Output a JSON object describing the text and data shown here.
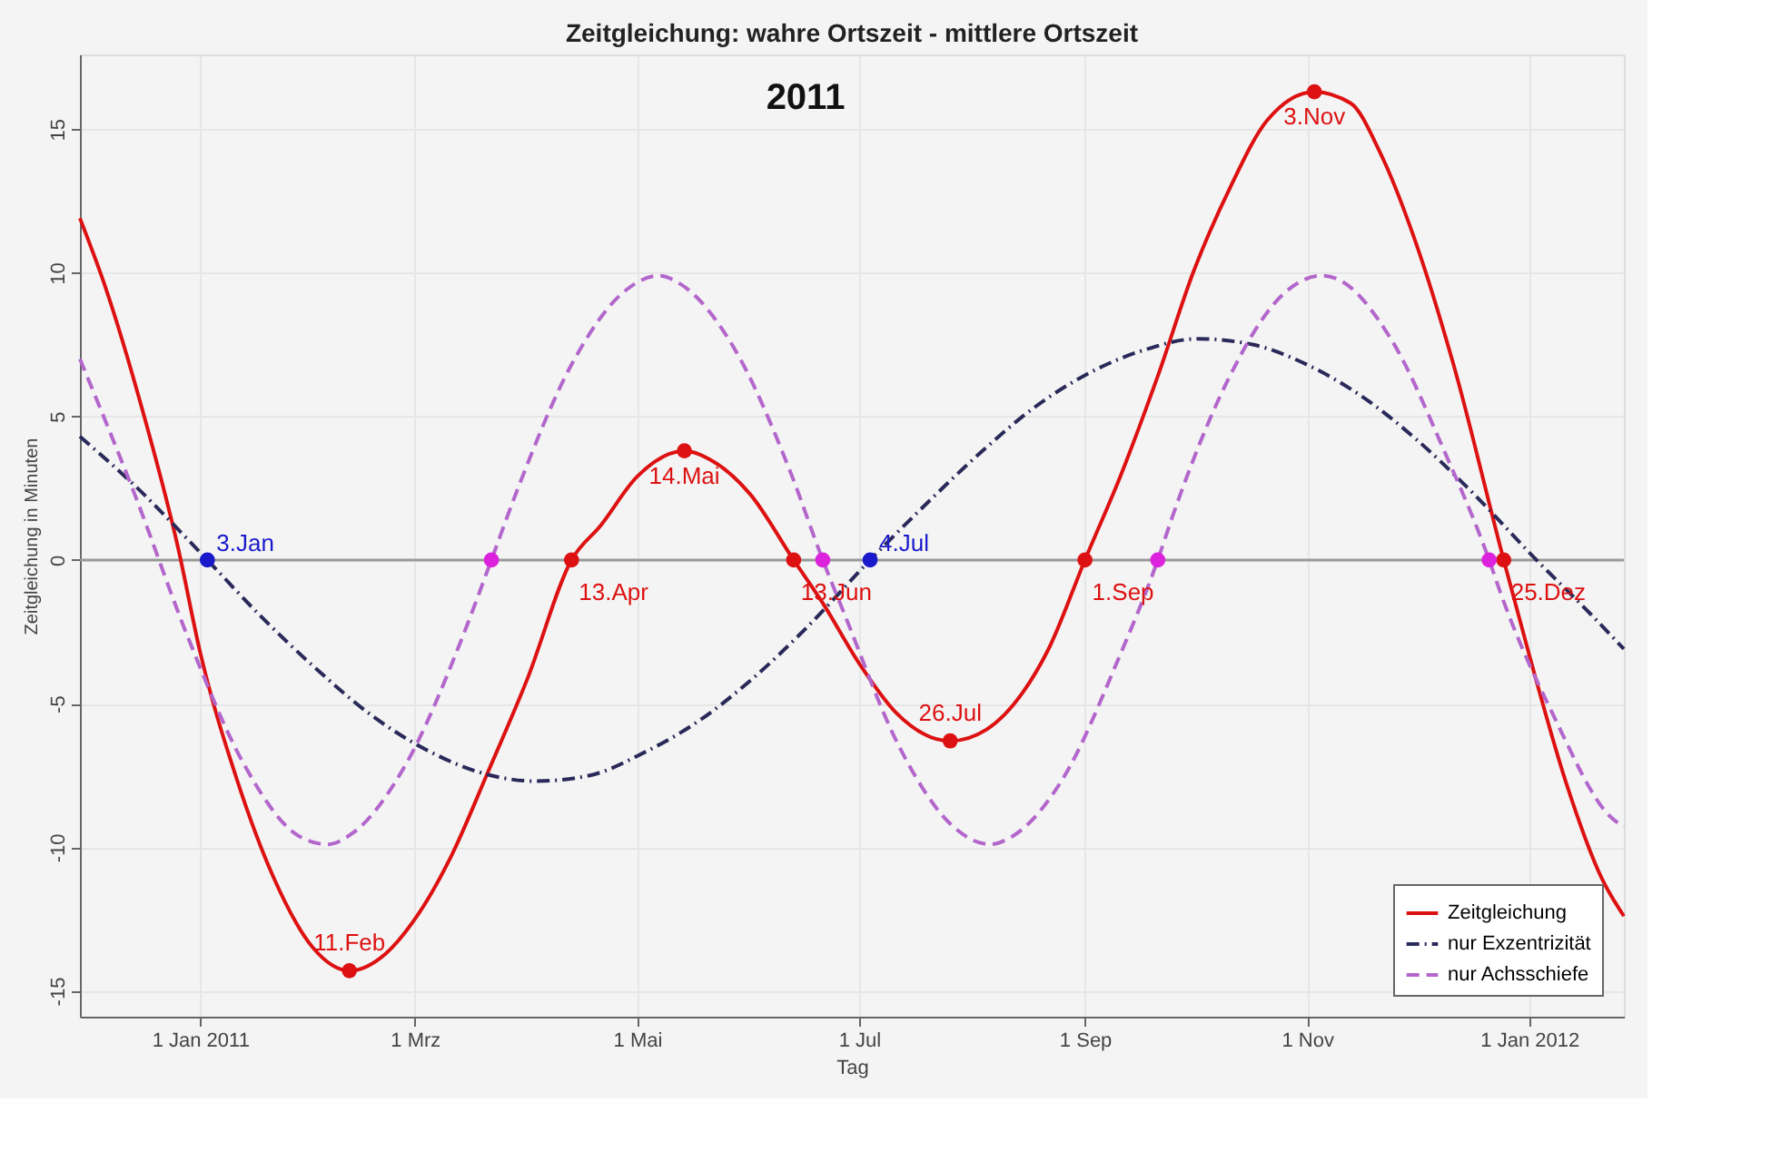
{
  "chart_data": {
    "type": "line",
    "title": "Zeitgleichung: wahre Ortszeit - mittlere Ortszeit",
    "xlabel": "Tag",
    "ylabel": "Zeitgleichung in Minuten",
    "xlim": [
      "2010-11-29",
      "2012-01-27"
    ],
    "ylim": [
      -15.9,
      17.6
    ],
    "xticks": [
      {
        "value": "2011-01-01",
        "label": "1 Jan 2011"
      },
      {
        "value": "2011-03-01",
        "label": "1 Mrz"
      },
      {
        "value": "2011-05-01",
        "label": "1 Mai"
      },
      {
        "value": "2011-07-01",
        "label": "1 Jul"
      },
      {
        "value": "2011-09-01",
        "label": "1 Sep"
      },
      {
        "value": "2011-11-01",
        "label": "1 Nov"
      },
      {
        "value": "2012-01-01",
        "label": "1 Jan 2012"
      }
    ],
    "yticks": [
      -15,
      -10,
      -5,
      0,
      5,
      10,
      15
    ],
    "grid": true,
    "legend": "bottom right",
    "series": [
      {
        "name": "Zeitgleichung",
        "color": "#dd1111",
        "line_style": "solid",
        "x": [
          "2010-11-29",
          "2010-12-06",
          "2010-12-16",
          "2010-12-26",
          "2011-01-01",
          "2011-01-11",
          "2011-01-21",
          "2011-02-01",
          "2011-02-11",
          "2011-02-21",
          "2011-03-01",
          "2011-03-11",
          "2011-03-21",
          "2011-04-01",
          "2011-04-13",
          "2011-04-21",
          "2011-05-01",
          "2011-05-14",
          "2011-05-21",
          "2011-06-01",
          "2011-06-13",
          "2011-06-21",
          "2011-07-01",
          "2011-07-11",
          "2011-07-26",
          "2011-08-05",
          "2011-08-15",
          "2011-08-22",
          "2011-09-01",
          "2011-09-11",
          "2011-09-21",
          "2011-10-01",
          "2011-10-11",
          "2011-10-21",
          "2011-11-03",
          "2011-11-13",
          "2011-11-21",
          "2011-12-01",
          "2011-12-11",
          "2011-12-25",
          "2012-01-01",
          "2012-01-11",
          "2012-01-21",
          "2012-01-27"
        ],
        "values": [
          11.9,
          9.5,
          5.3,
          0.4,
          -3.2,
          -7.6,
          -11.0,
          -13.5,
          -14.3,
          -13.7,
          -12.5,
          -10.3,
          -7.4,
          -4.1,
          0,
          1.2,
          2.9,
          3.8,
          3.5,
          2.3,
          0,
          -1.5,
          -3.6,
          -5.3,
          -6.3,
          -5.9,
          -4.6,
          -3.1,
          0,
          3.0,
          6.4,
          10.1,
          13.0,
          15.3,
          16.3,
          15.9,
          14.2,
          11.0,
          6.9,
          0,
          -3.3,
          -7.7,
          -11.1,
          -12.4
        ]
      },
      {
        "name": "nur Exzentrizität",
        "color": "#2a2a5a",
        "line_style": "dashdot",
        "x": [
          "2010-11-29",
          "2010-12-14",
          "2011-01-03",
          "2011-01-18",
          "2011-02-02",
          "2011-02-17",
          "2011-03-04",
          "2011-03-19",
          "2011-04-03",
          "2011-04-18",
          "2011-05-03",
          "2011-05-18",
          "2011-06-02",
          "2011-06-17",
          "2011-07-04",
          "2011-07-19",
          "2011-08-03",
          "2011-08-18",
          "2011-09-02",
          "2011-09-17",
          "2011-10-02",
          "2011-10-17",
          "2011-11-01",
          "2011-11-16",
          "2011-12-01",
          "2011-12-16",
          "2012-01-03",
          "2012-01-18",
          "2012-01-27"
        ],
        "values": [
          4.3,
          2.6,
          0,
          -2.0,
          -3.8,
          -5.4,
          -6.6,
          -7.4,
          -7.7,
          -7.5,
          -6.7,
          -5.6,
          -4.1,
          -2.3,
          0,
          1.9,
          3.7,
          5.3,
          6.5,
          7.3,
          7.7,
          7.5,
          6.8,
          5.7,
          4.2,
          2.4,
          0,
          -1.9,
          -3.1
        ]
      },
      {
        "name": "nur Achsschiefe",
        "color": "#b366cc",
        "line_style": "dashed",
        "x": [
          "2010-11-29",
          "2010-12-14",
          "2010-12-29",
          "2011-01-13",
          "2011-01-28",
          "2011-02-05",
          "2011-02-12",
          "2011-02-27",
          "2011-03-14",
          "2011-03-22",
          "2011-03-29",
          "2011-04-13",
          "2011-04-28",
          "2011-05-07",
          "2011-05-13",
          "2011-05-28",
          "2011-06-12",
          "2011-06-21",
          "2011-06-27",
          "2011-07-12",
          "2011-07-27",
          "2011-08-06",
          "2011-08-11",
          "2011-08-26",
          "2011-09-10",
          "2011-09-21",
          "2011-09-25",
          "2011-10-10",
          "2011-10-25",
          "2011-11-05",
          "2011-11-09",
          "2011-11-24",
          "2011-12-09",
          "2011-12-21",
          "2011-12-24",
          "2012-01-08",
          "2012-01-23",
          "2012-01-27"
        ],
        "values": [
          7.0,
          2.3,
          -2.8,
          -7.1,
          -9.6,
          -9.9,
          -9.5,
          -7.0,
          -2.7,
          0,
          2.4,
          6.8,
          9.4,
          9.9,
          9.6,
          7.3,
          3.1,
          0,
          -1.9,
          -6.5,
          -9.3,
          -9.9,
          -9.7,
          -7.6,
          -3.5,
          0,
          1.5,
          6.2,
          9.2,
          9.9,
          9.8,
          7.7,
          3.7,
          0,
          -1.1,
          -5.5,
          -8.9,
          -9.3
        ]
      },
      {
        "type": "scatter",
        "color": "#dd1111",
        "marker": "circle",
        "x": [
          "2011-02-11",
          "2011-04-13",
          "2011-05-14",
          "2011-06-13",
          "2011-07-26",
          "2011-09-01",
          "2011-11-03",
          "2011-12-25"
        ],
        "values": [
          -14.3,
          0,
          3.8,
          0,
          -6.3,
          0,
          16.3,
          0
        ]
      },
      {
        "type": "scatter",
        "color": "#1a1acc",
        "marker": "circle",
        "x": [
          "2011-01-03",
          "2011-07-04"
        ],
        "values": [
          0,
          0
        ]
      },
      {
        "type": "scatter",
        "color": "#dd22dd",
        "marker": "circle",
        "x": [
          "2011-03-22",
          "2011-06-21",
          "2011-09-21",
          "2011-12-21"
        ],
        "values": [
          0,
          0,
          0,
          0
        ]
      }
    ],
    "ref_lines": [
      {
        "axis": "y",
        "value": 0,
        "color": "#999999"
      }
    ],
    "annotations": [
      "2011",
      {
        "text": "11.Feb",
        "x": "2011-02-11",
        "y": -14.3
      },
      {
        "text": "13.Apr",
        "x": "2011-04-13",
        "y": 0
      },
      {
        "text": "14.Mai",
        "x": "2011-05-14",
        "y": 3.8
      },
      {
        "text": "13.Jun",
        "x": "2011-06-13",
        "y": 0
      },
      {
        "text": "26.Jul",
        "x": "2011-07-26",
        "y": -6.3
      },
      {
        "text": "1.Sep",
        "x": "2011-09-01",
        "y": 0
      },
      {
        "text": "3.Nov",
        "x": "2011-11-03",
        "y": 16.3
      },
      {
        "text": "25.Dez",
        "x": "2011-12-25",
        "y": 0
      },
      {
        "text": "3.Jan",
        "x": "2011-01-03",
        "y": 0
      },
      {
        "text": "4.Jul",
        "x": "2011-07-04",
        "y": 0
      }
    ]
  }
}
